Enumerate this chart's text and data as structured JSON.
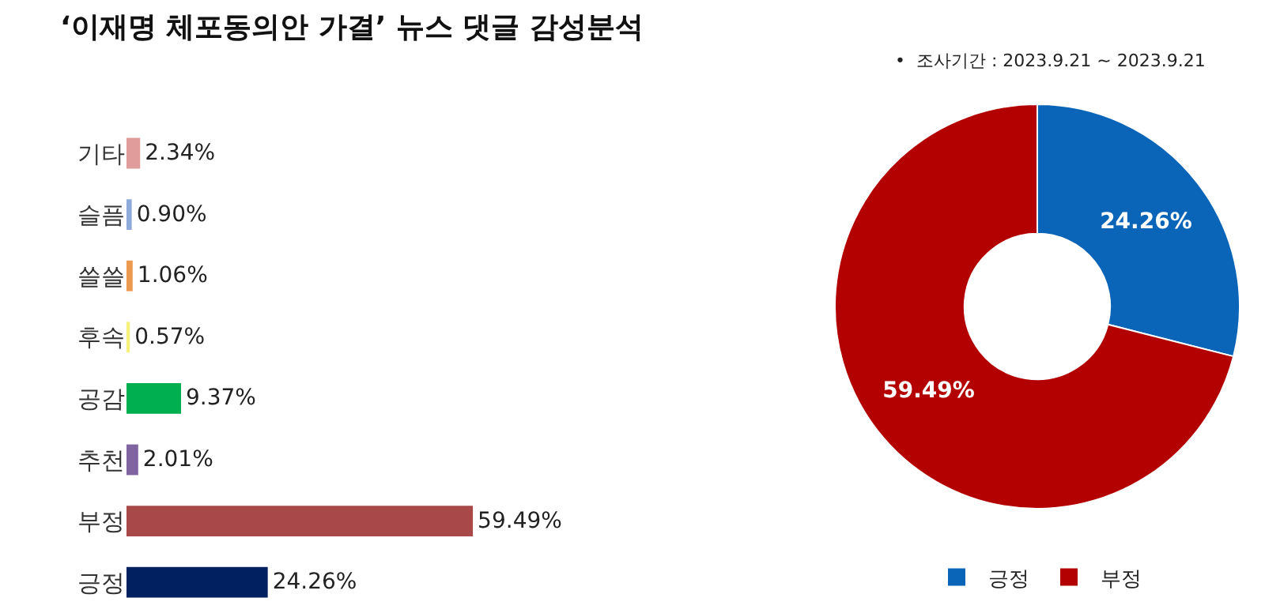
{
  "chart_data": [
    {
      "type": "bar",
      "orientation": "horizontal",
      "title": "‘이재명 체포동의안 가결’ 뉴스 댓글 감성분석",
      "annotations": [
        "•  조사기간 : 2023.9.21 ~ 2023.9.21"
      ],
      "categories": [
        "기타",
        "슬픔",
        "쓸쓸",
        "후속",
        "공감",
        "추천",
        "부정",
        "긍정"
      ],
      "values": [
        2.34,
        0.9,
        1.06,
        0.57,
        9.37,
        2.01,
        59.49,
        24.26
      ],
      "value_labels": [
        "2.34%",
        "0.90%",
        "1.06%",
        "0.57%",
        "9.37%",
        "2.01%",
        "59.49%",
        "24.26%"
      ],
      "colors": [
        "#e09b9b",
        "#8eaadb",
        "#ed9a50",
        "#f5f07a",
        "#00b050",
        "#8064a2",
        "#a94848",
        "#002060"
      ],
      "legend": false,
      "tick_labels": "y"
    },
    {
      "type": "donut",
      "categories": [
        "긍정",
        "부정"
      ],
      "values": [
        24.26,
        59.49
      ],
      "value_labels": [
        "24.26%",
        "59.49%"
      ],
      "colors": [
        "#0a64b8",
        "#b30000"
      ],
      "legend": "bottom"
    }
  ]
}
